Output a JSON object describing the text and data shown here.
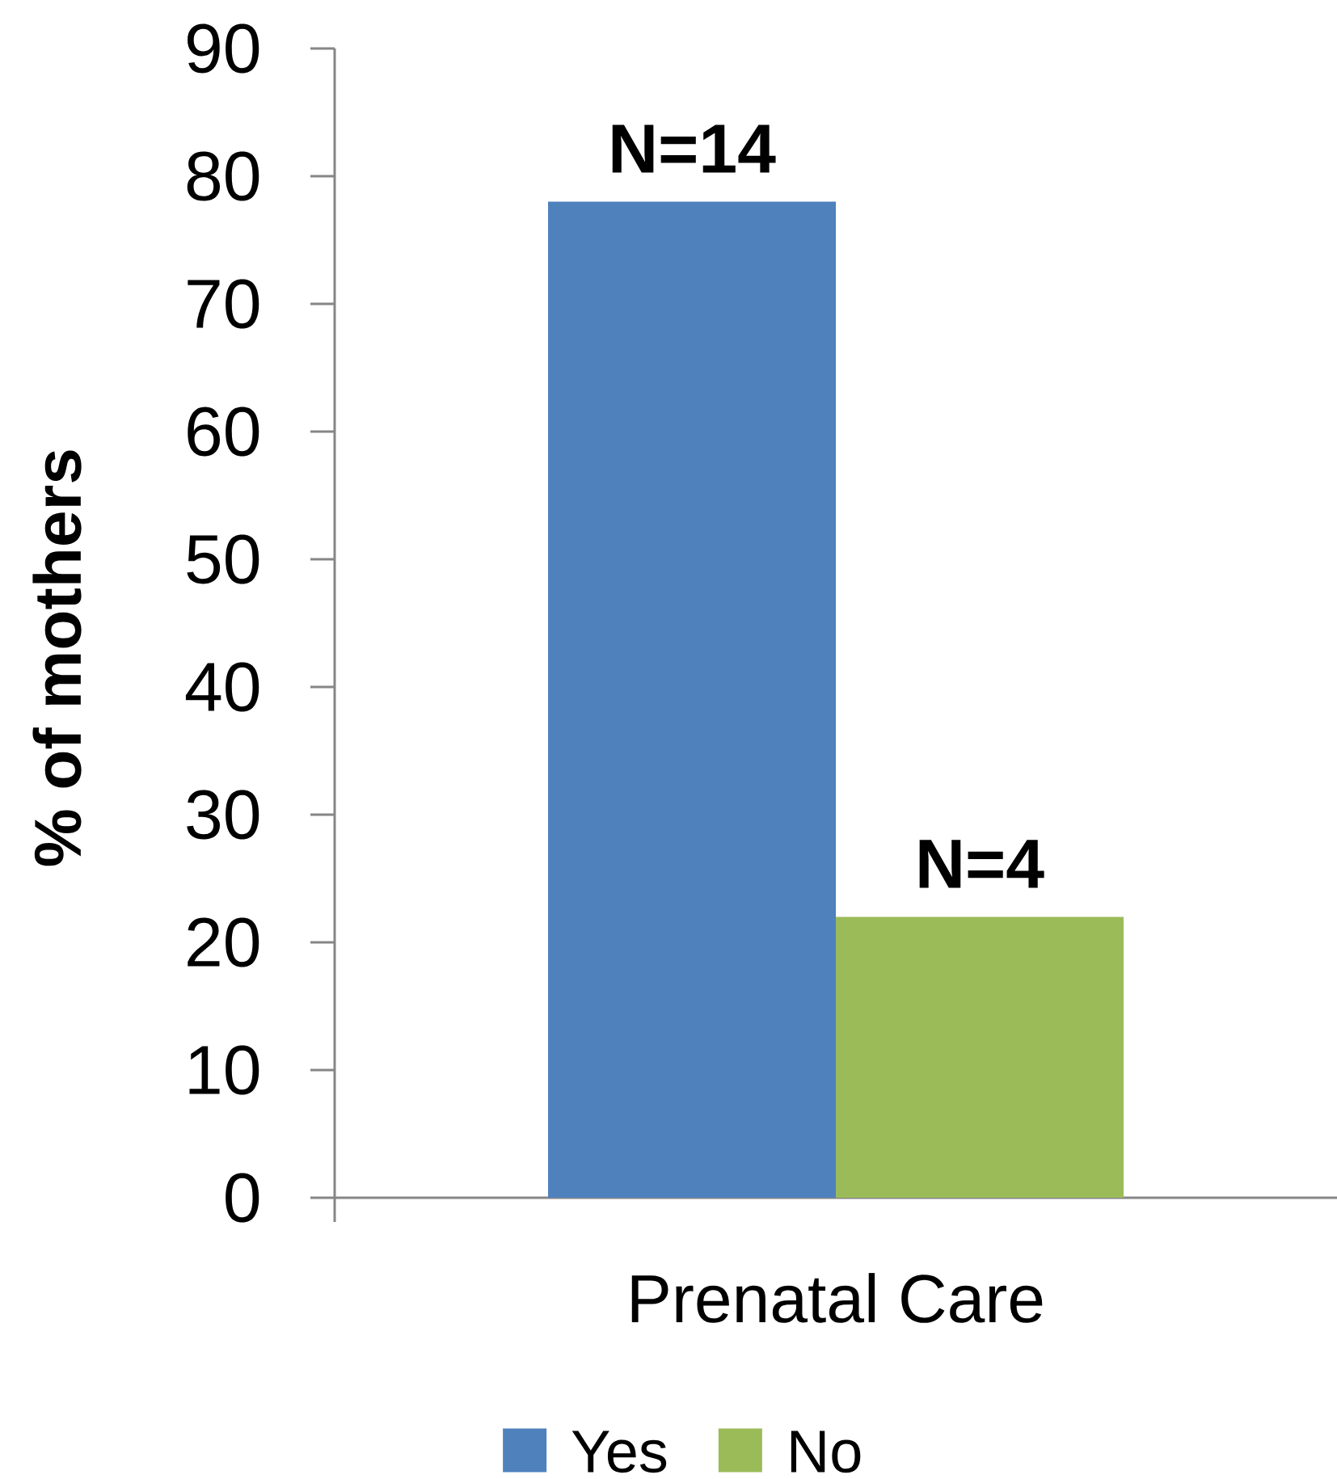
{
  "chart_data": {
    "type": "bar",
    "categories": [
      "Prenatal Care"
    ],
    "ylabel": "% of mothers",
    "series": [
      {
        "name": "Yes",
        "color": "#4f81bd",
        "values": [
          78
        ]
      },
      {
        "name": "No",
        "color": "#9bbb59",
        "values": [
          22
        ]
      }
    ],
    "annotations": [
      {
        "text": "N=14",
        "x": "Prenatal Care",
        "y": 78
      },
      {
        "text": "N=4",
        "x": "Prenatal Care",
        "y": 22
      }
    ],
    "ylim": [
      0,
      90
    ],
    "yticks": [
      0,
      10,
      20,
      30,
      40,
      50,
      60,
      70,
      80,
      90
    ],
    "legend": "bottom"
  }
}
